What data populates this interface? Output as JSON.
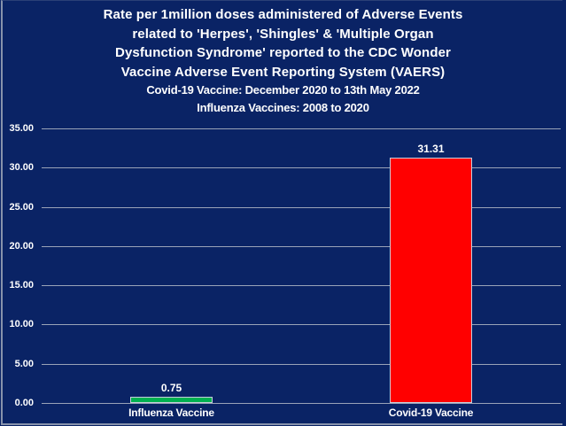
{
  "colors": {
    "background": "#0A2365",
    "text": "#FFFFFF",
    "gridline": "#9AA3B8",
    "bar_border": "#C6CEDD",
    "frame_border": "#8792AB"
  },
  "chart_data": {
    "type": "bar",
    "title_lines": [
      "Rate per 1million doses administered of Adverse Events",
      "related to 'Herpes', 'Shingles' & 'Multiple Organ",
      "Dysfunction Syndrome' reported to the CDC Wonder",
      "Vaccine Adverse Event Reporting System  (VAERS)"
    ],
    "subtitle_lines": [
      "Covid-19 Vaccine: December 2020 to 13th May 2022",
      "Influenza Vaccines: 2008 to 2020"
    ],
    "categories": [
      "Influenza Vaccine",
      "Covid-19 Vaccine"
    ],
    "values": [
      0.75,
      31.31
    ],
    "value_labels": [
      "0.75",
      "31.31"
    ],
    "bar_colors": [
      "#00B050",
      "#FF0000"
    ],
    "y_ticks": [
      "35.00",
      "30.00",
      "25.00",
      "20.00",
      "15.00",
      "10.00",
      "5.00",
      "0.00"
    ],
    "ylim": [
      0,
      35
    ],
    "grid": true,
    "legend": "none",
    "xlabel": "",
    "ylabel": ""
  }
}
